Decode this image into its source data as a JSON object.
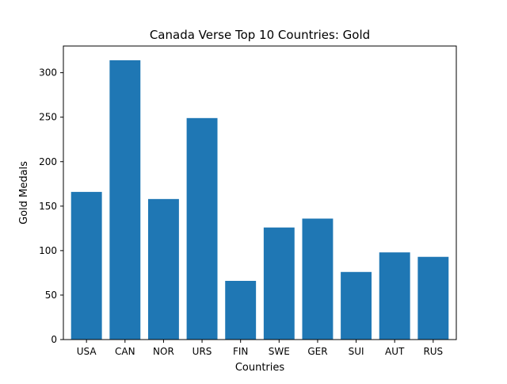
{
  "chart_data": {
    "type": "bar",
    "title": "Canada Verse Top 10 Countries: Gold",
    "xlabel": "Countries",
    "ylabel": "Gold Medals",
    "categories": [
      "USA",
      "CAN",
      "NOR",
      "URS",
      "FIN",
      "SWE",
      "GER",
      "SUI",
      "AUT",
      "RUS"
    ],
    "values": [
      166,
      314,
      158,
      249,
      66,
      126,
      136,
      76,
      98,
      93
    ],
    "ylim": [
      0,
      330
    ],
    "yticks": [
      0,
      50,
      100,
      150,
      200,
      250,
      300
    ],
    "bar_color": "#1f77b4",
    "grid": false,
    "legend": "none"
  }
}
